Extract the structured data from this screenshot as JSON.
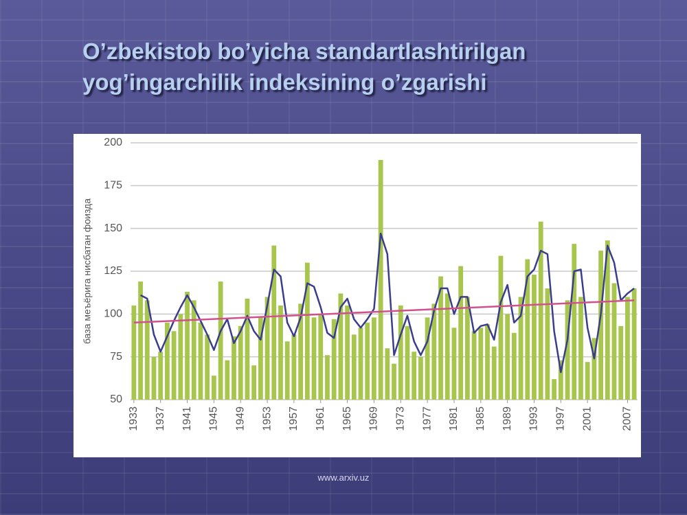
{
  "title": "O’zbekistob bo’yicha standartlashtirilgan yog’ingarchilik indeksining o’zgarishi",
  "footer": "www.arxiv.uz",
  "chart_data": {
    "type": "bar",
    "y_label": "база меъёрига нисбатан фоизда",
    "x": [
      1933,
      1934,
      1935,
      1936,
      1937,
      1938,
      1939,
      1940,
      1941,
      1942,
      1943,
      1944,
      1945,
      1946,
      1947,
      1948,
      1949,
      1950,
      1951,
      1952,
      1953,
      1954,
      1955,
      1956,
      1957,
      1958,
      1959,
      1960,
      1961,
      1962,
      1963,
      1964,
      1965,
      1966,
      1967,
      1968,
      1969,
      1970,
      1971,
      1972,
      1973,
      1974,
      1975,
      1976,
      1977,
      1978,
      1979,
      1980,
      1981,
      1982,
      1983,
      1984,
      1985,
      1986,
      1987,
      1988,
      1989,
      1990,
      1991,
      1992,
      1993,
      1994,
      1995,
      1996,
      1997,
      1998,
      1999,
      2000,
      2001,
      2002,
      2003,
      2004,
      2005,
      2006,
      2007,
      2008
    ],
    "series": [
      {
        "type": "bar",
        "color": "#a8c64e",
        "values": [
          105,
          119,
          108,
          75,
          78,
          95,
          90,
          100,
          113,
          108,
          95,
          88,
          64,
          119,
          73,
          87,
          93,
          109,
          70,
          98,
          110,
          140,
          105,
          84,
          88,
          106,
          130,
          98,
          100,
          76,
          97,
          112,
          105,
          88,
          92,
          95,
          98,
          190,
          80,
          71,
          105,
          93,
          78,
          75,
          98,
          106,
          122,
          112,
          92,
          128,
          110,
          90,
          92,
          94,
          81,
          134,
          100,
          89,
          110,
          132,
          123,
          154,
          115,
          62,
          73,
          108,
          141,
          110,
          72,
          86,
          137,
          143,
          118,
          93,
          110,
          115
        ]
      },
      {
        "type": "line",
        "color": "#3a3d8c",
        "values": [
          null,
          111,
          109,
          88,
          78,
          87,
          96,
          104,
          111,
          104,
          96,
          88,
          79,
          90,
          97,
          83,
          90,
          99,
          90,
          85,
          105,
          126,
          122,
          95,
          87,
          98,
          118,
          116,
          104,
          89,
          86,
          104,
          109,
          97,
          92,
          97,
          103,
          147,
          135,
          76,
          88,
          99,
          84,
          76,
          84,
          102,
          115,
          115,
          100,
          110,
          110,
          89,
          93,
          94,
          85,
          107,
          117,
          95,
          99,
          122,
          126,
          137,
          135,
          90,
          66,
          85,
          125,
          126,
          92,
          74,
          100,
          140,
          130,
          108,
          112,
          115
        ]
      }
    ],
    "trend": {
      "color": "#d2508c",
      "x": [
        1933,
        2008
      ],
      "values": [
        95,
        108
      ]
    },
    "xlim": [
      1932.5,
      2008.5
    ],
    "xticks": [
      1933,
      1937,
      1941,
      1945,
      1949,
      1953,
      1957,
      1961,
      1965,
      1969,
      1973,
      1977,
      1981,
      1985,
      1989,
      1993,
      1997,
      2001,
      2007
    ],
    "ylim": [
      50,
      200
    ],
    "yticks": [
      50,
      75,
      100,
      125,
      150,
      175,
      200
    ],
    "grid": true
  }
}
